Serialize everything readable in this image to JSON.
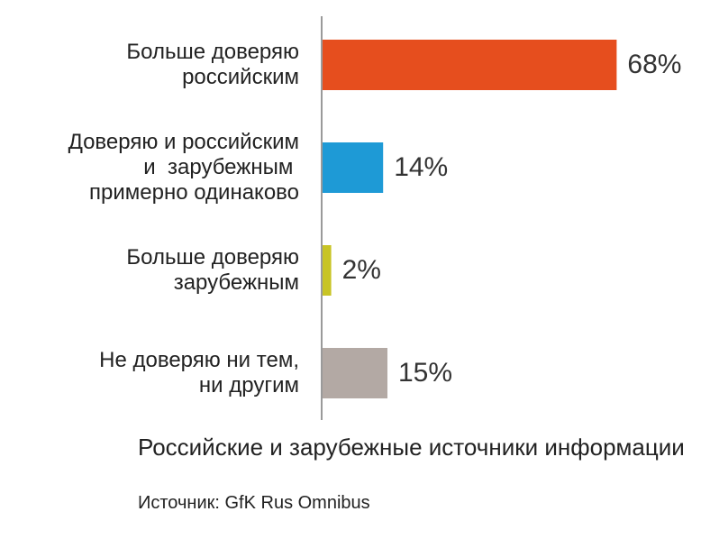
{
  "chart_data": {
    "type": "bar",
    "orientation": "horizontal",
    "categories": [
      "Больше доверяю\nроссийским",
      "Доверяю и российским\nи  зарубежным \nпримерно одинаково",
      "Больше доверяю\nзарубежным",
      "Не доверяю ни тем,\nни другим"
    ],
    "values": [
      68,
      14,
      2,
      15
    ],
    "value_labels": [
      "68%",
      "14%",
      "2%",
      "15%"
    ],
    "colors": [
      "#e64e1e",
      "#1e9ad6",
      "#c8c425",
      "#b3a9a4"
    ],
    "xlim": [
      0,
      100
    ],
    "grid": false,
    "legend": "none"
  },
  "caption": {
    "title": "Российские и зарубежные источники информации",
    "source": "Источник: GfK Rus Omnibus"
  }
}
